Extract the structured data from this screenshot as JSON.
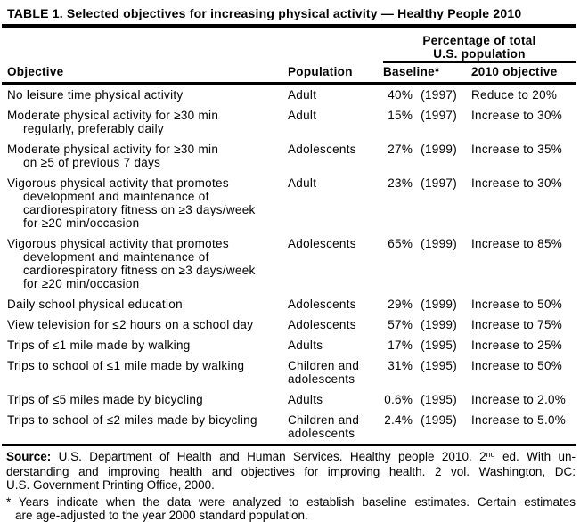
{
  "title": "TABLE 1. Selected objectives for increasing physical activity — Healthy People 2010",
  "header": {
    "objective": "Objective",
    "population": "Population",
    "spanner_line1": "Percentage of total",
    "spanner_line2": "U.S. population",
    "baseline": "Baseline*",
    "objective_2010": "2010 objective"
  },
  "rows": [
    {
      "objective_lines": [
        "No leisure time physical activity"
      ],
      "population_lines": [
        "Adult"
      ],
      "baseline_value": "40%",
      "baseline_year": "(1997)",
      "target": "Reduce to 20%"
    },
    {
      "objective_lines": [
        "Moderate physical activity for ≥30 min",
        "regularly, preferably daily"
      ],
      "population_lines": [
        "Adult"
      ],
      "baseline_value": "15%",
      "baseline_year": "(1997)",
      "target": "Increase to 30%"
    },
    {
      "objective_lines": [
        "Moderate physical activity for ≥30 min",
        "on ≥5 of previous 7 days"
      ],
      "population_lines": [
        "Adolescents"
      ],
      "baseline_value": "27%",
      "baseline_year": "(1999)",
      "target": "Increase to 35%"
    },
    {
      "objective_lines": [
        "Vigorous physical activity that promotes",
        "development and maintenance of",
        "cardiorespiratory fitness on ≥3 days/week",
        "for ≥20 min/occasion"
      ],
      "population_lines": [
        "Adult"
      ],
      "baseline_value": "23%",
      "baseline_year": "(1997)",
      "target": "Increase to 30%"
    },
    {
      "objective_lines": [
        "Vigorous physical activity that promotes",
        "development and maintenance of",
        "cardiorespiratory fitness on ≥3 days/week",
        "for ≥20 min/occasion"
      ],
      "population_lines": [
        "Adolescents"
      ],
      "baseline_value": "65%",
      "baseline_year": "(1999)",
      "target": "Increase to 85%"
    },
    {
      "objective_lines": [
        "Daily school physical education"
      ],
      "population_lines": [
        "Adolescents"
      ],
      "baseline_value": "29%",
      "baseline_year": "(1999)",
      "target": "Increase to 50%"
    },
    {
      "objective_lines": [
        "View television for ≤2 hours on a school day"
      ],
      "population_lines": [
        "Adolescents"
      ],
      "baseline_value": "57%",
      "baseline_year": "(1999)",
      "target": "Increase to 75%"
    },
    {
      "objective_lines": [
        "Trips of ≤1 mile made by walking"
      ],
      "population_lines": [
        "Adults"
      ],
      "baseline_value": "17%",
      "baseline_year": "(1995)",
      "target": "Increase to 25%"
    },
    {
      "objective_lines": [
        "Trips to school of ≤1 mile made by walking"
      ],
      "population_lines": [
        "Children and",
        "adolescents"
      ],
      "baseline_value": "31%",
      "baseline_year": "(1995)",
      "target": "Increase to 50%"
    },
    {
      "objective_lines": [
        "Trips of ≤5 miles made by bicycling"
      ],
      "population_lines": [
        "Adults"
      ],
      "baseline_value": "0.6%",
      "baseline_year": "(1995)",
      "target": "Increase to 2.0%"
    },
    {
      "objective_lines": [
        "Trips to school of ≤2 miles made by bicycling"
      ],
      "population_lines": [
        "Children and",
        "adolescents"
      ],
      "baseline_value": "2.4%",
      "baseline_year": "(1995)",
      "target": "Increase to 5.0%"
    }
  ],
  "source": {
    "label": "Source:",
    "line1_a": " U.S. Department of Health and Human Services. Healthy people 2010. 2",
    "line1_sup": "nd",
    "line1_b": " ed. With un-",
    "line2": "derstanding and improving health and objectives for improving health. 2 vol. Washington, DC:",
    "line3": "U.S. Government Printing Office, 2000."
  },
  "footnote": {
    "line1": "* Years indicate when the data were analyzed to establish baseline estimates. Certain estimates",
    "line2": "are age-adjusted to the year 2000 standard population."
  }
}
